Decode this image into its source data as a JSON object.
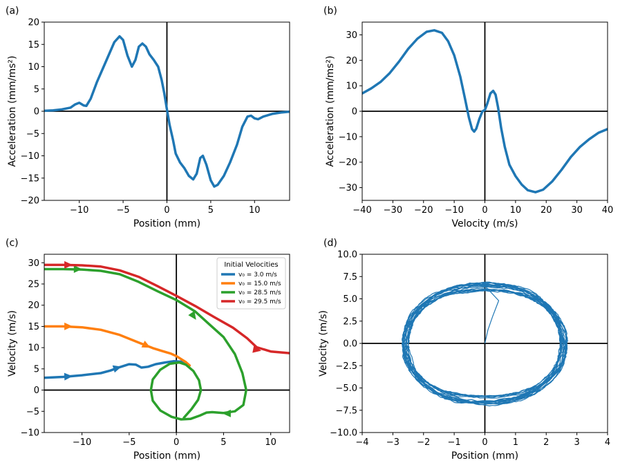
{
  "chart_data": [
    {
      "id": "a",
      "panel_label": "(a)",
      "type": "line",
      "xlabel": "Position (mm)",
      "ylabel": "Acceleration (mm/ms²)",
      "xlim": [
        -14,
        14
      ],
      "ylim": [
        -20,
        20
      ],
      "xticks": [
        -10,
        -5,
        0,
        5,
        10
      ],
      "xtick_labels": [
        "−10",
        "−5",
        "0",
        "5",
        "10"
      ],
      "yticks": [
        -20,
        -15,
        -10,
        -5,
        0,
        5,
        10,
        15,
        20
      ],
      "ytick_labels": [
        "−20",
        "−15",
        "−10",
        "−5",
        "0",
        "5",
        "10",
        "15",
        "20"
      ],
      "series": [
        {
          "name": "acceleration",
          "color": "#1f77b4",
          "points": [
            [
              -14,
              0.1
            ],
            [
              -13,
              0.2
            ],
            [
              -12,
              0.4
            ],
            [
              -11,
              0.8
            ],
            [
              -10.5,
              1.5
            ],
            [
              -10,
              1.9
            ],
            [
              -9.5,
              1.3
            ],
            [
              -9.2,
              1.2
            ],
            [
              -8.7,
              2.8
            ],
            [
              -8,
              6.5
            ],
            [
              -7,
              11
            ],
            [
              -6,
              15.5
            ],
            [
              -5.4,
              16.8
            ],
            [
              -5,
              16
            ],
            [
              -4.5,
              12.5
            ],
            [
              -4,
              10
            ],
            [
              -3.6,
              11.5
            ],
            [
              -3.2,
              14.5
            ],
            [
              -2.8,
              15.2
            ],
            [
              -2.4,
              14.5
            ],
            [
              -2,
              12.8
            ],
            [
              -1.5,
              11.5
            ],
            [
              -1,
              10
            ],
            [
              -0.6,
              7
            ],
            [
              -0.3,
              4
            ],
            [
              0,
              0.4
            ],
            [
              0.3,
              -3
            ],
            [
              0.7,
              -6.5
            ],
            [
              1,
              -9.5
            ],
            [
              1.5,
              -11.5
            ],
            [
              2,
              -12.8
            ],
            [
              2.5,
              -14.5
            ],
            [
              3,
              -15.3
            ],
            [
              3.4,
              -14
            ],
            [
              3.8,
              -10.5
            ],
            [
              4.1,
              -10
            ],
            [
              4.5,
              -12
            ],
            [
              5,
              -15.5
            ],
            [
              5.4,
              -16.9
            ],
            [
              5.8,
              -16.5
            ],
            [
              6.5,
              -14.5
            ],
            [
              7.2,
              -11.5
            ],
            [
              8,
              -7.5
            ],
            [
              8.6,
              -3.5
            ],
            [
              9.2,
              -1.2
            ],
            [
              9.6,
              -1
            ],
            [
              10,
              -1.6
            ],
            [
              10.4,
              -1.8
            ],
            [
              11,
              -1.2
            ],
            [
              12,
              -0.6
            ],
            [
              13,
              -0.3
            ],
            [
              14,
              -0.1
            ]
          ]
        }
      ]
    },
    {
      "id": "b",
      "panel_label": "(b)",
      "type": "line",
      "xlabel": "Velocity (m/s)",
      "ylabel": "Acceleration (mm/ms²)",
      "xlim": [
        -40,
        40
      ],
      "ylim": [
        -35,
        35
      ],
      "xticks": [
        -40,
        -30,
        -20,
        -10,
        0,
        10,
        20,
        30,
        40
      ],
      "xtick_labels": [
        "−40",
        "−30",
        "−20",
        "−10",
        "0",
        "10",
        "20",
        "30",
        "40"
      ],
      "yticks": [
        -30,
        -20,
        -10,
        0,
        10,
        20,
        30
      ],
      "ytick_labels": [
        "−30",
        "−20",
        "−10",
        "0",
        "10",
        "20",
        "30"
      ],
      "series": [
        {
          "name": "acceleration",
          "color": "#1f77b4",
          "points": [
            [
              -40,
              7
            ],
            [
              -37,
              9
            ],
            [
              -34,
              11.5
            ],
            [
              -31,
              15
            ],
            [
              -28,
              19.5
            ],
            [
              -25,
              24.5
            ],
            [
              -22,
              28.5
            ],
            [
              -19,
              31.2
            ],
            [
              -16.5,
              31.8
            ],
            [
              -14,
              30.8
            ],
            [
              -12,
              27.5
            ],
            [
              -10,
              22
            ],
            [
              -8,
              13.5
            ],
            [
              -6.5,
              5
            ],
            [
              -5.2,
              -2.5
            ],
            [
              -4.2,
              -7
            ],
            [
              -3.5,
              -8
            ],
            [
              -2.8,
              -6.8
            ],
            [
              -1.8,
              -3
            ],
            [
              -0.8,
              0
            ],
            [
              0,
              0.5
            ],
            [
              0.8,
              3
            ],
            [
              1.8,
              7
            ],
            [
              2.7,
              8
            ],
            [
              3.5,
              6.5
            ],
            [
              4.3,
              1.5
            ],
            [
              5.3,
              -6.5
            ],
            [
              6.5,
              -14
            ],
            [
              8,
              -21
            ],
            [
              10,
              -25.5
            ],
            [
              12,
              -28.8
            ],
            [
              14,
              -31
            ],
            [
              16.5,
              -31.8
            ],
            [
              19,
              -30.8
            ],
            [
              22,
              -27.5
            ],
            [
              25,
              -23
            ],
            [
              28,
              -18
            ],
            [
              31,
              -14
            ],
            [
              34,
              -11
            ],
            [
              37,
              -8.5
            ],
            [
              40,
              -7
            ]
          ]
        }
      ]
    },
    {
      "id": "c",
      "panel_label": "(c)",
      "type": "line",
      "xlabel": "Position (mm)",
      "ylabel": "Velocity (m/s)",
      "xlim": [
        -14,
        12
      ],
      "ylim": [
        -10,
        32
      ],
      "xticks": [
        -10,
        -5,
        0,
        5,
        10
      ],
      "xtick_labels": [
        "−10",
        "−5",
        "0",
        "5",
        "10"
      ],
      "yticks": [
        -10,
        -5,
        0,
        5,
        10,
        15,
        20,
        25,
        30
      ],
      "ytick_labels": [
        "−10",
        "−5",
        "0",
        "5",
        "10",
        "15",
        "20",
        "25",
        "30"
      ],
      "legend": {
        "title": "Initial Velocities",
        "entries": [
          "v₀ = 3.0 m/s",
          "v₀ = 15.0 m/s",
          "v₀ = 28.5 m/s",
          "v₀ = 29.5 m/s"
        ]
      },
      "series": [
        {
          "name": "v₀ = 3.0 m/s",
          "color": "#1f77b4",
          "points": [
            [
              -14,
              2.9
            ],
            [
              -12,
              3.1
            ],
            [
              -10,
              3.5
            ],
            [
              -8,
              4.0
            ],
            [
              -7,
              4.6
            ],
            [
              -6,
              5.4
            ],
            [
              -5,
              6.1
            ],
            [
              -4.3,
              6.0
            ],
            [
              -3.7,
              5.3
            ],
            [
              -3,
              5.5
            ],
            [
              -2.2,
              6.1
            ],
            [
              -1.2,
              6.5
            ],
            [
              -0.3,
              6.8
            ],
            [
              0.5,
              6.7
            ],
            [
              1.2,
              6.0
            ]
          ],
          "arrows": [
            [
              -11.5,
              3.2,
              1,
              0.05
            ],
            [
              -6.3,
              5.2,
              1,
              0.3
            ]
          ]
        },
        {
          "name": "v₀ = 15.0 m/s",
          "color": "#ff7f0e",
          "points": [
            [
              -14,
              15
            ],
            [
              -12,
              15
            ],
            [
              -10,
              14.8
            ],
            [
              -8,
              14.2
            ],
            [
              -6,
              13
            ],
            [
              -4,
              11.2
            ],
            [
              -2.5,
              9.9
            ],
            [
              -1.5,
              9.2
            ],
            [
              -0.6,
              8.6
            ],
            [
              0,
              8
            ],
            [
              0.5,
              7.3
            ],
            [
              1,
              6.6
            ],
            [
              1.4,
              5.8
            ]
          ],
          "arrows": [
            [
              -11.5,
              15,
              1,
              0
            ],
            [
              -3.2,
              10.5,
              1,
              -0.5
            ]
          ]
        },
        {
          "name": "v₀ = 28.5 m/s",
          "color": "#2ca02c",
          "points": [
            [
              -14,
              28.5
            ],
            [
              -12,
              28.5
            ],
            [
              -10,
              28.4
            ],
            [
              -8,
              28.1
            ],
            [
              -6,
              27.3
            ],
            [
              -4,
              25.5
            ],
            [
              -2,
              23.3
            ],
            [
              0,
              21.2
            ],
            [
              2,
              18.5
            ],
            [
              3.5,
              15.5
            ],
            [
              5,
              12.5
            ],
            [
              6.2,
              8.5
            ],
            [
              7,
              4
            ],
            [
              7.4,
              0
            ],
            [
              7.1,
              -3.5
            ],
            [
              6.2,
              -5
            ],
            [
              5,
              -5.4
            ],
            [
              3.8,
              -5.2
            ],
            [
              3.2,
              -5.3
            ],
            [
              2.5,
              -6
            ],
            [
              1.5,
              -6.8
            ],
            [
              0.5,
              -6.9
            ],
            [
              -0.5,
              -6.3
            ],
            [
              -1.7,
              -4.8
            ],
            [
              -2.5,
              -2.5
            ],
            [
              -2.7,
              0
            ],
            [
              -2.5,
              2.5
            ],
            [
              -1.7,
              4.8
            ],
            [
              -0.7,
              6.2
            ],
            [
              0.3,
              6.5
            ],
            [
              1,
              6
            ],
            [
              1.8,
              4.5
            ],
            [
              2.4,
              2.3
            ],
            [
              2.6,
              0
            ],
            [
              2.3,
              -2.3
            ],
            [
              1.6,
              -4.5
            ],
            [
              0.8,
              -6.5
            ]
          ],
          "arrows": [
            [
              -10.5,
              28.5,
              1,
              0
            ],
            [
              1.8,
              17.5,
              0.7,
              -1
            ],
            [
              5.4,
              -5.5,
              -1,
              0
            ]
          ]
        },
        {
          "name": "v₀ = 29.5 m/s",
          "color": "#d62728",
          "points": [
            [
              -14,
              29.5
            ],
            [
              -12,
              29.5
            ],
            [
              -10,
              29.4
            ],
            [
              -8,
              29.1
            ],
            [
              -6,
              28.2
            ],
            [
              -4,
              26.7
            ],
            [
              -2,
              24.5
            ],
            [
              0,
              22.2
            ],
            [
              2,
              19.8
            ],
            [
              4,
              17.2
            ],
            [
              6,
              14.7
            ],
            [
              7.5,
              12.2
            ],
            [
              8.5,
              10.1
            ],
            [
              10,
              9.1
            ],
            [
              12,
              8.7
            ]
          ],
          "arrows": [
            [
              -11.5,
              29.5,
              1,
              0
            ],
            [
              8.5,
              9.5,
              1,
              -0.2
            ]
          ]
        }
      ]
    },
    {
      "id": "d",
      "panel_label": "(d)",
      "type": "line",
      "xlabel": "Position (mm)",
      "ylabel": "Velocity (m/s)",
      "xlim": [
        -4,
        4
      ],
      "ylim": [
        -10,
        10
      ],
      "xticks": [
        -4,
        -3,
        -2,
        -1,
        0,
        1,
        2,
        3,
        4
      ],
      "xtick_labels": [
        "−4",
        "−3",
        "−2",
        "−1",
        "0",
        "1",
        "2",
        "3",
        "4"
      ],
      "yticks": [
        -10,
        -7.5,
        -5,
        -2.5,
        0,
        2.5,
        5,
        7.5,
        10
      ],
      "ytick_labels": [
        "−10.0",
        "−7.5",
        "−5.0",
        "−2.5",
        "0.0",
        "2.5",
        "5.0",
        "7.5",
        "10.0"
      ],
      "series": [
        {
          "name": "noisy orbit",
          "color": "#1f77b4",
          "start": [
            0,
            0
          ],
          "initial_branch": [
            [
              0,
              0
            ],
            [
              0.1,
              1.5
            ],
            [
              0.25,
              3
            ],
            [
              0.45,
              4.8
            ]
          ],
          "orbit_radius_x": 2.58,
          "orbit_radius_y": 6.4,
          "orbit_spread_x": 0.1,
          "orbit_spread_y": 0.45,
          "loops": 20
        }
      ]
    }
  ]
}
